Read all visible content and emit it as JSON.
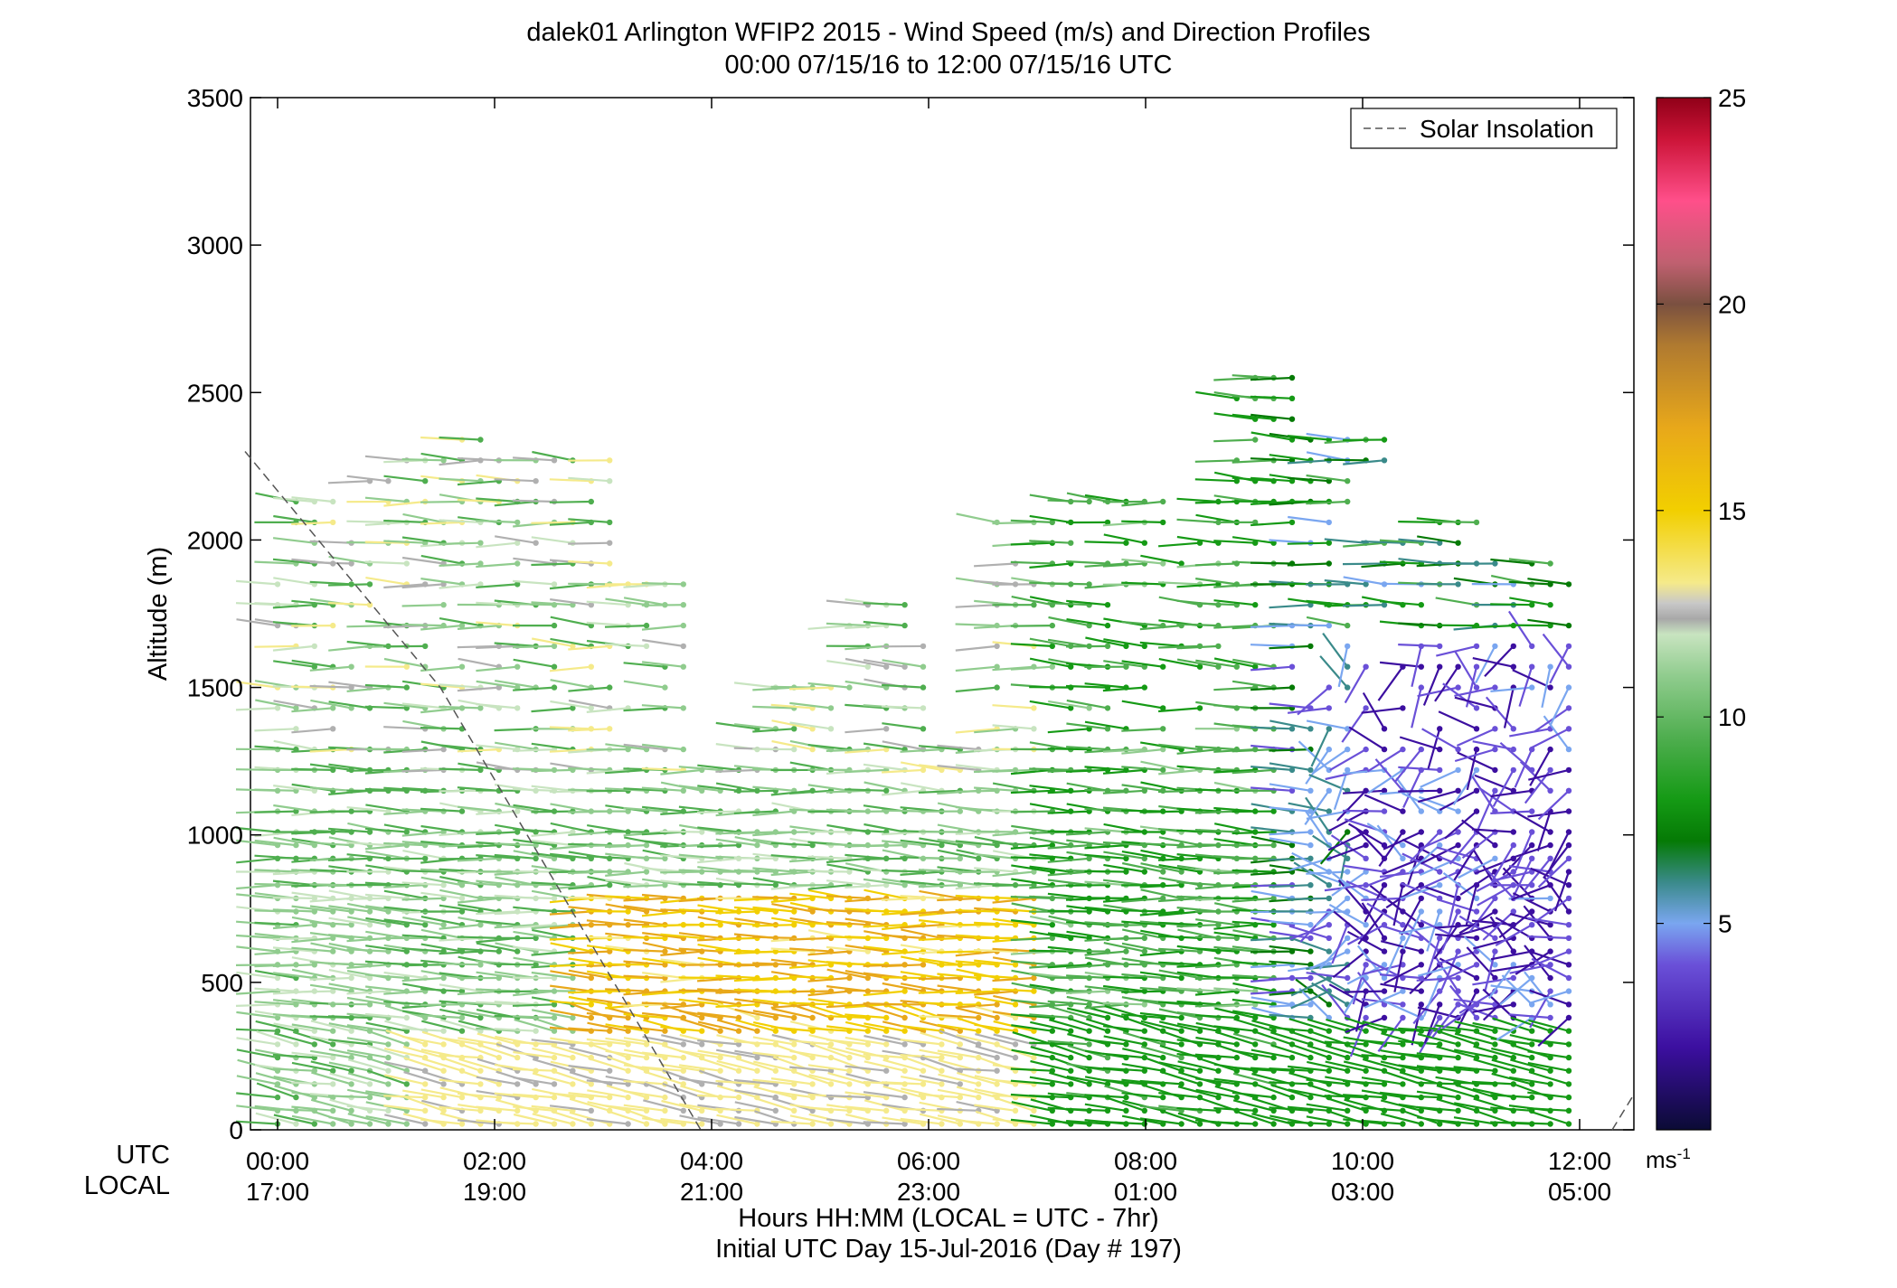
{
  "title": "dalek01 Arlington WFIP2 2015 - Wind Speed (m/s) and Direction Profiles",
  "subtitle": "00:00 07/15/16 to 12:00 07/15/16  UTC",
  "ylabel": "Altitude (m)",
  "utc_row_label": "UTC",
  "local_row_label": "LOCAL",
  "xlabel": "Hours HH:MM  (LOCAL = UTC - 7hr)",
  "xlabel2": "Initial UTC Day 15-Jul-2016 (Day # 197)",
  "legend_label": "Solar Insolation",
  "colorbar_unit": "ms",
  "colorbar_unit_exp": "-1",
  "chart_data": {
    "type": "wind-barb profile",
    "xlim": [
      -0.25,
      12.5
    ],
    "ylim": [
      0,
      3500
    ],
    "yticks": [
      0,
      500,
      1000,
      1500,
      2000,
      2500,
      3000,
      3500
    ],
    "xticks_utc": [
      "00:00",
      "02:00",
      "04:00",
      "06:00",
      "08:00",
      "10:00",
      "12:00"
    ],
    "xticks_local": [
      "17:00",
      "19:00",
      "21:00",
      "23:00",
      "01:00",
      "03:00",
      "05:00"
    ],
    "xtick_hours": [
      0,
      2,
      4,
      6,
      8,
      10,
      12
    ],
    "colorbar": {
      "range": [
        0,
        25
      ],
      "ticks": [
        5,
        10,
        15,
        20,
        25
      ]
    },
    "solar_insolation": [
      [
        -0.3,
        2300
      ],
      [
        1.5,
        1500
      ],
      [
        3.9,
        0
      ]
    ],
    "solar_insolation_end": [
      [
        12.3,
        0
      ],
      [
        12.5,
        120
      ]
    ],
    "grid": false,
    "legend_position": "top-right",
    "colors": {
      "0": "#0b0b35",
      "2": "#3c0fa0",
      "4": "#6a50d8",
      "5": "#7aa6f0",
      "6": "#3a8a8a",
      "7": "#057a05",
      "8": "#159a15",
      "9.5": "#4fae4f",
      "11": "#90cc8e",
      "12": "#c8e4c0",
      "12.5": "#b0b0b0",
      "13.5": "#f5ea8a",
      "15": "#f2cf00",
      "17": "#e8a81a",
      "19": "#b07a30",
      "20": "#7a5040",
      "21": "#c06070",
      "22.5": "#ff4f8a",
      "24": "#cc1438",
      "25": "#900018"
    }
  }
}
